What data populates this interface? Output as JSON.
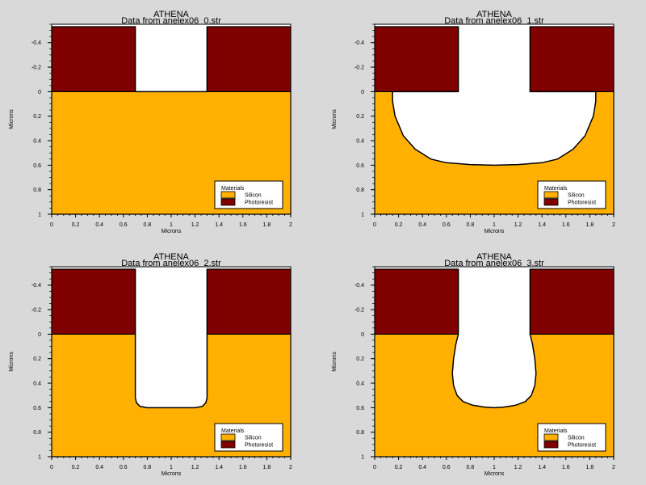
{
  "chart_data": [
    {
      "type": "area",
      "title": "ATHENA",
      "subtitle": "Data from anelex06_0.str",
      "xlabel": "Microns",
      "ylabel": "Microns",
      "xlim": [
        0,
        2
      ],
      "ylim": [
        -0.55,
        1.0
      ],
      "y_inverted": true,
      "xticks": [
        "0",
        "0.2",
        "0.4",
        "0.6",
        "0.8",
        "1",
        "1.2",
        "1.4",
        "1.6",
        "1.8",
        "2"
      ],
      "yticks": [
        "-0.4",
        "-0.2",
        "0",
        "0.2",
        "0.4",
        "0.6",
        "0.8",
        "1"
      ],
      "grid": false,
      "legend": {
        "title": "Materials",
        "placement": "bottom-right",
        "entries": [
          {
            "label": "Silicon",
            "color": "#ffb000"
          },
          {
            "label": "Photoresist",
            "color": "#800000"
          }
        ]
      },
      "materials": [
        {
          "name": "Photoresist",
          "color": "#800000",
          "regions": [
            [
              [
                0,
                -0.53
              ],
              [
                0.7,
                -0.53
              ],
              [
                0.7,
                0
              ],
              [
                0,
                0
              ]
            ],
            [
              [
                1.3,
                -0.53
              ],
              [
                2,
                -0.53
              ],
              [
                2,
                0
              ],
              [
                1.3,
                0
              ]
            ]
          ]
        },
        {
          "name": "Silicon",
          "color": "#ffb000",
          "regions": [
            [
              [
                0,
                0
              ],
              [
                2,
                0
              ],
              [
                2,
                1
              ],
              [
                0,
                1
              ]
            ]
          ]
        }
      ],
      "etch_outline": [
        [
          0.7,
          -0.53
        ],
        [
          0.7,
          0
        ],
        [
          1.3,
          0
        ],
        [
          1.3,
          -0.53
        ]
      ]
    },
    {
      "type": "area",
      "title": "ATHENA",
      "subtitle": "Data from anelex06_1.str",
      "xlabel": "Microns",
      "ylabel": "Microns",
      "xlim": [
        0,
        2
      ],
      "ylim": [
        -0.55,
        1.0
      ],
      "y_inverted": true,
      "xticks": [
        "0",
        "0.2",
        "0.4",
        "0.6",
        "0.8",
        "1",
        "1.2",
        "1.4",
        "1.6",
        "1.8",
        "2"
      ],
      "yticks": [
        "-0.4",
        "-0.2",
        "0",
        "0.2",
        "0.4",
        "0.6",
        "0.8",
        "1"
      ],
      "grid": false,
      "legend": {
        "title": "Materials",
        "placement": "bottom-right",
        "entries": [
          {
            "label": "Silicon",
            "color": "#ffb000"
          },
          {
            "label": "Photoresist",
            "color": "#800000"
          }
        ]
      },
      "materials": [
        {
          "name": "Photoresist",
          "color": "#800000",
          "regions": [
            [
              [
                0,
                -0.53
              ],
              [
                0.7,
                -0.53
              ],
              [
                0.7,
                0
              ],
              [
                0,
                0
              ]
            ],
            [
              [
                1.3,
                -0.53
              ],
              [
                2,
                -0.53
              ],
              [
                2,
                0
              ],
              [
                1.3,
                0
              ]
            ]
          ]
        },
        {
          "name": "Silicon",
          "color": "#ffb000",
          "regions": [
            [
              [
                0,
                0
              ],
              [
                2,
                0
              ],
              [
                2,
                1
              ],
              [
                0,
                1
              ]
            ]
          ]
        }
      ],
      "etch_outline": [
        [
          0.7,
          -0.53
        ],
        [
          0.7,
          0
        ],
        [
          0.15,
          0
        ],
        [
          0.15,
          0.08
        ],
        [
          0.17,
          0.2
        ],
        [
          0.24,
          0.36
        ],
        [
          0.34,
          0.47
        ],
        [
          0.47,
          0.55
        ],
        [
          0.6,
          0.58
        ],
        [
          0.8,
          0.595
        ],
        [
          1.0,
          0.6
        ],
        [
          1.2,
          0.595
        ],
        [
          1.4,
          0.58
        ],
        [
          1.53,
          0.55
        ],
        [
          1.66,
          0.47
        ],
        [
          1.76,
          0.36
        ],
        [
          1.83,
          0.2
        ],
        [
          1.85,
          0.08
        ],
        [
          1.85,
          0
        ],
        [
          1.3,
          0
        ],
        [
          1.3,
          -0.53
        ]
      ]
    },
    {
      "type": "area",
      "title": "ATHENA",
      "subtitle": "Data from anelex06_2.str",
      "xlabel": "Microns",
      "ylabel": "Microns",
      "xlim": [
        0,
        2
      ],
      "ylim": [
        -0.55,
        1.0
      ],
      "y_inverted": true,
      "xticks": [
        "0",
        "0.2",
        "0.4",
        "0.6",
        "0.8",
        "1",
        "1.2",
        "1.4",
        "1.6",
        "1.8",
        "2"
      ],
      "yticks": [
        "-0.4",
        "-0.2",
        "0",
        "0.2",
        "0.4",
        "0.6",
        "0.8",
        "1"
      ],
      "grid": false,
      "legend": {
        "title": "Materials",
        "placement": "bottom-right",
        "entries": [
          {
            "label": "Silicon",
            "color": "#ffb000"
          },
          {
            "label": "Photoresist",
            "color": "#800000"
          }
        ]
      },
      "materials": [
        {
          "name": "Photoresist",
          "color": "#800000",
          "regions": [
            [
              [
                0,
                -0.53
              ],
              [
                0.7,
                -0.53
              ],
              [
                0.7,
                0
              ],
              [
                0,
                0
              ]
            ],
            [
              [
                1.3,
                -0.53
              ],
              [
                2,
                -0.53
              ],
              [
                2,
                0
              ],
              [
                1.3,
                0
              ]
            ]
          ]
        },
        {
          "name": "Silicon",
          "color": "#ffb000",
          "regions": [
            [
              [
                0,
                0
              ],
              [
                2,
                0
              ],
              [
                2,
                1
              ],
              [
                0,
                1
              ]
            ]
          ]
        }
      ],
      "etch_outline": [
        [
          0.7,
          -0.53
        ],
        [
          0.7,
          0
        ],
        [
          0.7,
          0.52
        ],
        [
          0.71,
          0.56
        ],
        [
          0.74,
          0.59
        ],
        [
          0.8,
          0.6
        ],
        [
          1.2,
          0.6
        ],
        [
          1.26,
          0.59
        ],
        [
          1.29,
          0.56
        ],
        [
          1.3,
          0.52
        ],
        [
          1.3,
          0
        ],
        [
          1.3,
          -0.53
        ]
      ]
    },
    {
      "type": "area",
      "title": "ATHENA",
      "subtitle": "Data from anelex06_3.str",
      "xlabel": "Microns",
      "ylabel": "Microns",
      "xlim": [
        0,
        2
      ],
      "ylim": [
        -0.55,
        1.0
      ],
      "y_inverted": true,
      "xticks": [
        "0",
        "0.2",
        "0.4",
        "0.6",
        "0.8",
        "1",
        "1.2",
        "1.4",
        "1.6",
        "1.8",
        "2"
      ],
      "yticks": [
        "-0.4",
        "-0.2",
        "0",
        "0.2",
        "0.4",
        "0.6",
        "0.8",
        "1"
      ],
      "grid": false,
      "legend": {
        "title": "Materials",
        "placement": "bottom-right",
        "entries": [
          {
            "label": "Silicon",
            "color": "#ffb000"
          },
          {
            "label": "Photoresist",
            "color": "#800000"
          }
        ]
      },
      "materials": [
        {
          "name": "Photoresist",
          "color": "#800000",
          "regions": [
            [
              [
                0,
                -0.53
              ],
              [
                0.7,
                -0.53
              ],
              [
                0.7,
                0
              ],
              [
                0,
                0
              ]
            ],
            [
              [
                1.3,
                -0.53
              ],
              [
                2,
                -0.53
              ],
              [
                2,
                0
              ],
              [
                1.3,
                0
              ]
            ]
          ]
        },
        {
          "name": "Silicon",
          "color": "#ffb000",
          "regions": [
            [
              [
                0,
                0
              ],
              [
                2,
                0
              ],
              [
                2,
                1
              ],
              [
                0,
                1
              ]
            ]
          ]
        }
      ],
      "etch_outline": [
        [
          0.7,
          -0.53
        ],
        [
          0.7,
          0
        ],
        [
          0.68,
          0.08
        ],
        [
          0.66,
          0.2
        ],
        [
          0.65,
          0.32
        ],
        [
          0.66,
          0.42
        ],
        [
          0.69,
          0.5
        ],
        [
          0.74,
          0.55
        ],
        [
          0.82,
          0.58
        ],
        [
          0.92,
          0.595
        ],
        [
          1.0,
          0.6
        ],
        [
          1.08,
          0.595
        ],
        [
          1.18,
          0.58
        ],
        [
          1.26,
          0.55
        ],
        [
          1.31,
          0.5
        ],
        [
          1.34,
          0.42
        ],
        [
          1.35,
          0.32
        ],
        [
          1.34,
          0.2
        ],
        [
          1.32,
          0.08
        ],
        [
          1.3,
          0
        ],
        [
          1.3,
          -0.53
        ]
      ]
    }
  ]
}
